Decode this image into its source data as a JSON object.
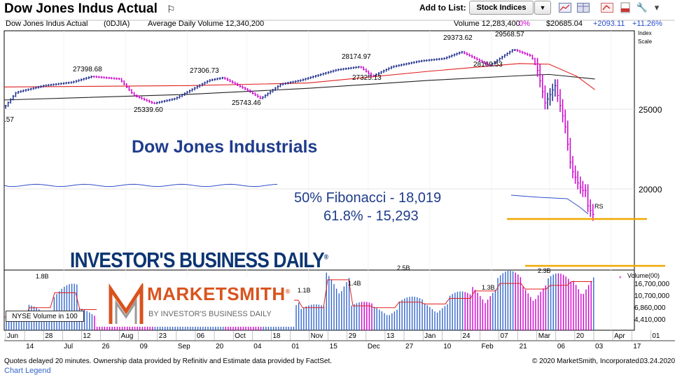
{
  "header": {
    "title": "Dow Jones Indus Actual",
    "add_to_list": "Add to List:",
    "list_selected": "Stock Indices",
    "icons": [
      "flag-icon",
      "dropdown-arrow-icon",
      "chart-icon",
      "grid-icon",
      "share-icon",
      "pdf-icon",
      "settings-icon",
      "collapse-icon"
    ]
  },
  "infobar": {
    "name": "Dow Jones Indus Actual",
    "symbol": "(0DJIA)",
    "avg_volume": "Average Daily Volume 12,340,200",
    "volume": "Volume 12,283,400",
    "volume_pct": "0%",
    "price": "$20685.04",
    "change": "+2093.11",
    "change_pct": "+11.26%",
    "index_label": "Index",
    "scale_label": "Scale"
  },
  "annotations": {
    "headline": "Dow Jones Industrials",
    "fib1": "50% Fibonacci -  18,019",
    "fib2": "61.8% -  15,293",
    "ibd": "INVESTOR'S BUSINESS DAILY",
    "ibd_reg": "®",
    "ms_name": "MARKETSMITH",
    "ms_reg": "®",
    "ms_sub": "BY INVESTOR'S BUSINESS DAILY",
    "nyse": "NYSE Volume in 100",
    "rs": "RS",
    "vol_legend": "Volume(00)"
  },
  "chart_data": {
    "type": "bar",
    "price_axis": {
      "ticks": [
        "25000",
        "20000"
      ],
      "cutoff_label": ".57"
    },
    "price_labels": [
      "27398.68",
      "27306.73",
      "28174.97",
      "29373.62",
      "29568.57",
      "25339.60",
      "25743.46",
      "27325.13",
      "28169.53"
    ],
    "fib_level_50": 18019,
    "fib_level_618": 15293,
    "volume_axis": {
      "ticks": [
        "16,700,000",
        "10,700,000",
        "6,860,000",
        "4,410,000"
      ]
    },
    "volume_labels": [
      "1.8B",
      "1.1B",
      "1.4B",
      "2.5B",
      "1.3B",
      "2.3B"
    ],
    "x_ticks": [
      "Jun",
      "14",
      "28",
      "Jul",
      "12",
      "26",
      "Aug",
      "09",
      "23",
      "Sep",
      "06",
      "20",
      "Oct",
      "04",
      "18",
      "01",
      "Nov",
      "15",
      "29",
      "Dec",
      "13",
      "27",
      "Jan",
      "10",
      "24",
      "Feb",
      "07",
      "21",
      "Mar",
      "06",
      "20",
      "03",
      "Apr",
      "17",
      "01"
    ],
    "close_path": [
      [
        "Jun 1",
        25100
      ],
      [
        "Jun 7",
        26200
      ],
      [
        "Jun 21",
        26700
      ],
      [
        "Jul 5",
        26950
      ],
      [
        "Jul 15",
        27390
      ],
      [
        "Jul 29",
        27200
      ],
      [
        "Aug 5",
        26000
      ],
      [
        "Aug 15",
        25400
      ],
      [
        "Aug 26",
        25750
      ],
      [
        "Sep 12",
        27100
      ],
      [
        "Sep 19",
        27300
      ],
      [
        "Oct 2",
        26300
      ],
      [
        "Oct 8",
        25750
      ],
      [
        "Oct 18",
        26800
      ],
      [
        "Oct 28",
        27100
      ],
      [
        "Nov 15",
        27900
      ],
      [
        "Nov 27",
        28150
      ],
      [
        "Dec 3",
        27400
      ],
      [
        "Dec 13",
        28150
      ],
      [
        "Dec 27",
        28600
      ],
      [
        "Jan 8",
        28800
      ],
      [
        "Jan 17",
        29350
      ],
      [
        "Jan 27",
        28550
      ],
      [
        "Jan 31",
        28250
      ],
      [
        "Feb 12",
        29550
      ],
      [
        "Feb 21",
        29000
      ],
      [
        "Feb 24",
        27950
      ],
      [
        "Feb 28",
        25400
      ],
      [
        "Mar 4",
        26700
      ],
      [
        "Mar 9",
        23850
      ],
      [
        "Mar 12",
        21200
      ],
      [
        "Mar 16",
        20190
      ],
      [
        "Mar 18",
        19900
      ],
      [
        "Mar 19",
        20100
      ],
      [
        "Mar 20",
        19170
      ],
      [
        "Mar 23",
        18590
      ],
      [
        "Mar 24",
        20685
      ]
    ],
    "ma_red": [
      [
        "Jun 1",
        26600
      ],
      [
        "Sep 1",
        26700
      ],
      [
        "Nov 1",
        26900
      ],
      [
        "Jan 1",
        27800
      ],
      [
        "Feb 15",
        28400
      ],
      [
        "Mar 1",
        28350
      ],
      [
        "Mar 15",
        27400
      ],
      [
        "Mar 24",
        26400
      ]
    ],
    "ma_black": [
      [
        "Jun 1",
        25650
      ],
      [
        "Sep 1",
        26050
      ],
      [
        "Nov 1",
        26500
      ],
      [
        "Jan 1",
        27100
      ],
      [
        "Feb 15",
        27450
      ],
      [
        "Mar 1",
        27550
      ],
      [
        "Mar 24",
        27200
      ]
    ],
    "volume_series_B": [
      0.5,
      1.0,
      1.8,
      0.9,
      1.1,
      0.8,
      1.2,
      1.0,
      1.1,
      0.9,
      1.1,
      1.4,
      1.0,
      2.5,
      1.1,
      1.0,
      1.3,
      1.2,
      1.5,
      1.9,
      2.3,
      2.0,
      2.2,
      2.4
    ]
  },
  "footer": {
    "delay": "Quotes delayed 20 minutes. Ownership data provided by Refinitiv and Estimate data provided by FactSet.",
    "copyright": "© 2020 MarketSmith, Incorporated.",
    "date": "03.24.2020",
    "legend_link": "Chart Legend"
  },
  "colors": {
    "accent_blue": "#1f3c8c",
    "bar_up": "#3366cc",
    "bar_down": "#cc00cc",
    "ma_red": "#e02020",
    "fib_line": "#f0a800",
    "ms_orange": "#d9531e"
  }
}
